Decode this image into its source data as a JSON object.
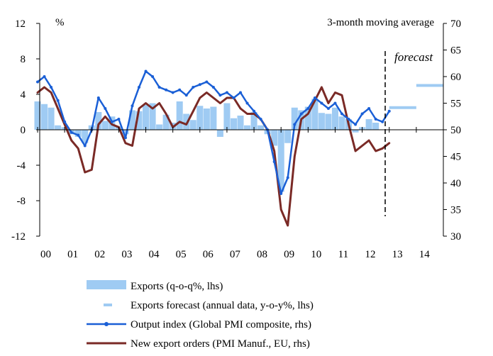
{
  "chart_data": {
    "type": "bar+line",
    "title": "",
    "annotation_top": "3-month moving average",
    "forecast_label": "forecast",
    "left_axis": {
      "label": "%",
      "range": [
        -12,
        12
      ],
      "ticks": [
        "12",
        "8",
        "4",
        "0",
        "-4",
        "-8",
        "-12"
      ]
    },
    "right_axis": {
      "range": [
        30,
        70
      ],
      "ticks": [
        "70",
        "65",
        "60",
        "55",
        "50",
        "45",
        "40",
        "35",
        "30"
      ]
    },
    "x_axis": {
      "range": [
        2000,
        2015
      ],
      "tick_labels": [
        "00",
        "01",
        "02",
        "03",
        "04",
        "05",
        "06",
        "07",
        "08",
        "09",
        "10",
        "11",
        "12",
        "13",
        "14"
      ]
    },
    "forecast_start": 2012.85,
    "colors": {
      "exports_bar": "#9fcbf3",
      "forecast_dash": "#9fcbf3",
      "pmi_line": "#1a5fd6",
      "orders_line": "#7a2a26"
    },
    "legend": [
      {
        "label": "Exports (q-o-q%, lhs)",
        "style": "bar"
      },
      {
        "label": "Exports forecast (annual data, y-o-y%, lhs)",
        "style": "dash"
      },
      {
        "label": "Output index (Global PMI composite, rhs)",
        "style": "marker-line"
      },
      {
        "label": "New export orders (PMI Manuf., EU, rhs)",
        "style": "line"
      }
    ],
    "series": [
      {
        "name": "Exports (q-o-q%, lhs)",
        "axis": "left",
        "kind": "bar",
        "x": [
          2000.0,
          2000.25,
          2000.5,
          2000.75,
          2001.0,
          2001.25,
          2001.5,
          2001.75,
          2002.0,
          2002.25,
          2002.5,
          2002.75,
          2003.0,
          2003.25,
          2003.5,
          2003.75,
          2004.0,
          2004.25,
          2004.5,
          2004.75,
          2005.0,
          2005.25,
          2005.5,
          2005.75,
          2006.0,
          2006.25,
          2006.5,
          2006.75,
          2007.0,
          2007.25,
          2007.5,
          2007.75,
          2008.0,
          2008.25,
          2008.5,
          2008.75,
          2009.0,
          2009.25,
          2009.5,
          2009.75,
          2010.0,
          2010.25,
          2010.5,
          2010.75,
          2011.0,
          2011.25,
          2011.5,
          2011.75,
          2012.0,
          2012.25,
          2012.5
        ],
        "values": [
          3.2,
          2.9,
          2.5,
          0.5,
          0.3,
          -0.5,
          -0.8,
          -1.5,
          0.5,
          2.0,
          1.0,
          1.5,
          0.4,
          -0.5,
          2.2,
          2.1,
          2.8,
          3.0,
          0.6,
          1.7,
          0.8,
          3.2,
          1.8,
          1.1,
          2.7,
          2.4,
          2.6,
          -0.8,
          3.0,
          1.3,
          1.6,
          0.5,
          2.0,
          0.5,
          -0.5,
          -1.8,
          -7.0,
          -1.5,
          2.5,
          2.2,
          2.6,
          3.5,
          1.9,
          1.8,
          2.5,
          1.5,
          1.2,
          -0.3,
          0.3,
          1.2,
          0.8
        ]
      },
      {
        "name": "Exports forecast (annual data, y-o-y%, lhs)",
        "axis": "left",
        "kind": "dash",
        "segments": [
          {
            "x": [
              2013.0,
              2014.0
            ],
            "value": 2.5
          },
          {
            "x": [
              2014.0,
              2015.0
            ],
            "value": 5.0
          }
        ]
      },
      {
        "name": "Output index (Global PMI composite, rhs)",
        "axis": "right",
        "kind": "marker-line",
        "x": [
          2000.0,
          2000.25,
          2000.5,
          2000.75,
          2001.0,
          2001.25,
          2001.5,
          2001.75,
          2002.0,
          2002.25,
          2002.5,
          2002.75,
          2003.0,
          2003.25,
          2003.5,
          2003.75,
          2004.0,
          2004.25,
          2004.5,
          2004.75,
          2005.0,
          2005.25,
          2005.5,
          2005.75,
          2006.0,
          2006.25,
          2006.5,
          2006.75,
          2007.0,
          2007.25,
          2007.5,
          2007.75,
          2008.0,
          2008.25,
          2008.5,
          2008.75,
          2009.0,
          2009.25,
          2009.5,
          2009.75,
          2010.0,
          2010.25,
          2010.5,
          2010.75,
          2011.0,
          2011.25,
          2011.5,
          2011.75,
          2012.0,
          2012.25,
          2012.5,
          2012.75,
          2013.0
        ],
        "values": [
          59,
          60,
          58,
          55.5,
          51.5,
          49.5,
          49,
          47,
          50,
          56,
          54,
          51.5,
          52,
          48.5,
          54.5,
          58,
          61,
          60,
          58,
          57.5,
          57,
          57.5,
          56.5,
          58,
          58.5,
          59,
          58,
          56.5,
          57,
          56,
          57,
          55,
          53.5,
          52,
          50,
          44,
          38,
          41,
          51,
          53,
          54,
          56,
          55,
          54,
          55,
          53,
          52,
          51,
          53,
          54,
          52,
          51.5,
          53.5
        ]
      },
      {
        "name": "New export orders (PMI Manuf., EU, rhs)",
        "axis": "right",
        "kind": "line",
        "x": [
          2000.0,
          2000.25,
          2000.5,
          2000.75,
          2001.0,
          2001.25,
          2001.5,
          2001.75,
          2002.0,
          2002.25,
          2002.5,
          2002.75,
          2003.0,
          2003.25,
          2003.5,
          2003.75,
          2004.0,
          2004.25,
          2004.5,
          2004.75,
          2005.0,
          2005.25,
          2005.5,
          2005.75,
          2006.0,
          2006.25,
          2006.5,
          2006.75,
          2007.0,
          2007.25,
          2007.5,
          2007.75,
          2008.0,
          2008.25,
          2008.5,
          2008.75,
          2009.0,
          2009.25,
          2009.5,
          2009.75,
          2010.0,
          2010.25,
          2010.5,
          2010.75,
          2011.0,
          2011.25,
          2011.5,
          2011.75,
          2012.0,
          2012.25,
          2012.5,
          2012.75,
          2013.0
        ],
        "values": [
          57,
          58,
          57,
          54,
          51,
          48,
          46.5,
          42,
          42.5,
          51,
          52.5,
          51,
          50.5,
          47.5,
          47,
          54,
          55,
          54,
          55,
          53,
          50.5,
          51.5,
          51,
          53.5,
          56,
          57,
          56,
          55,
          56,
          56,
          54,
          53,
          53,
          52,
          50,
          46,
          35,
          32,
          45,
          52,
          53,
          55.5,
          58,
          55,
          57,
          56.5,
          51,
          46,
          47,
          48,
          46,
          46.5,
          47.5
        ]
      }
    ]
  }
}
